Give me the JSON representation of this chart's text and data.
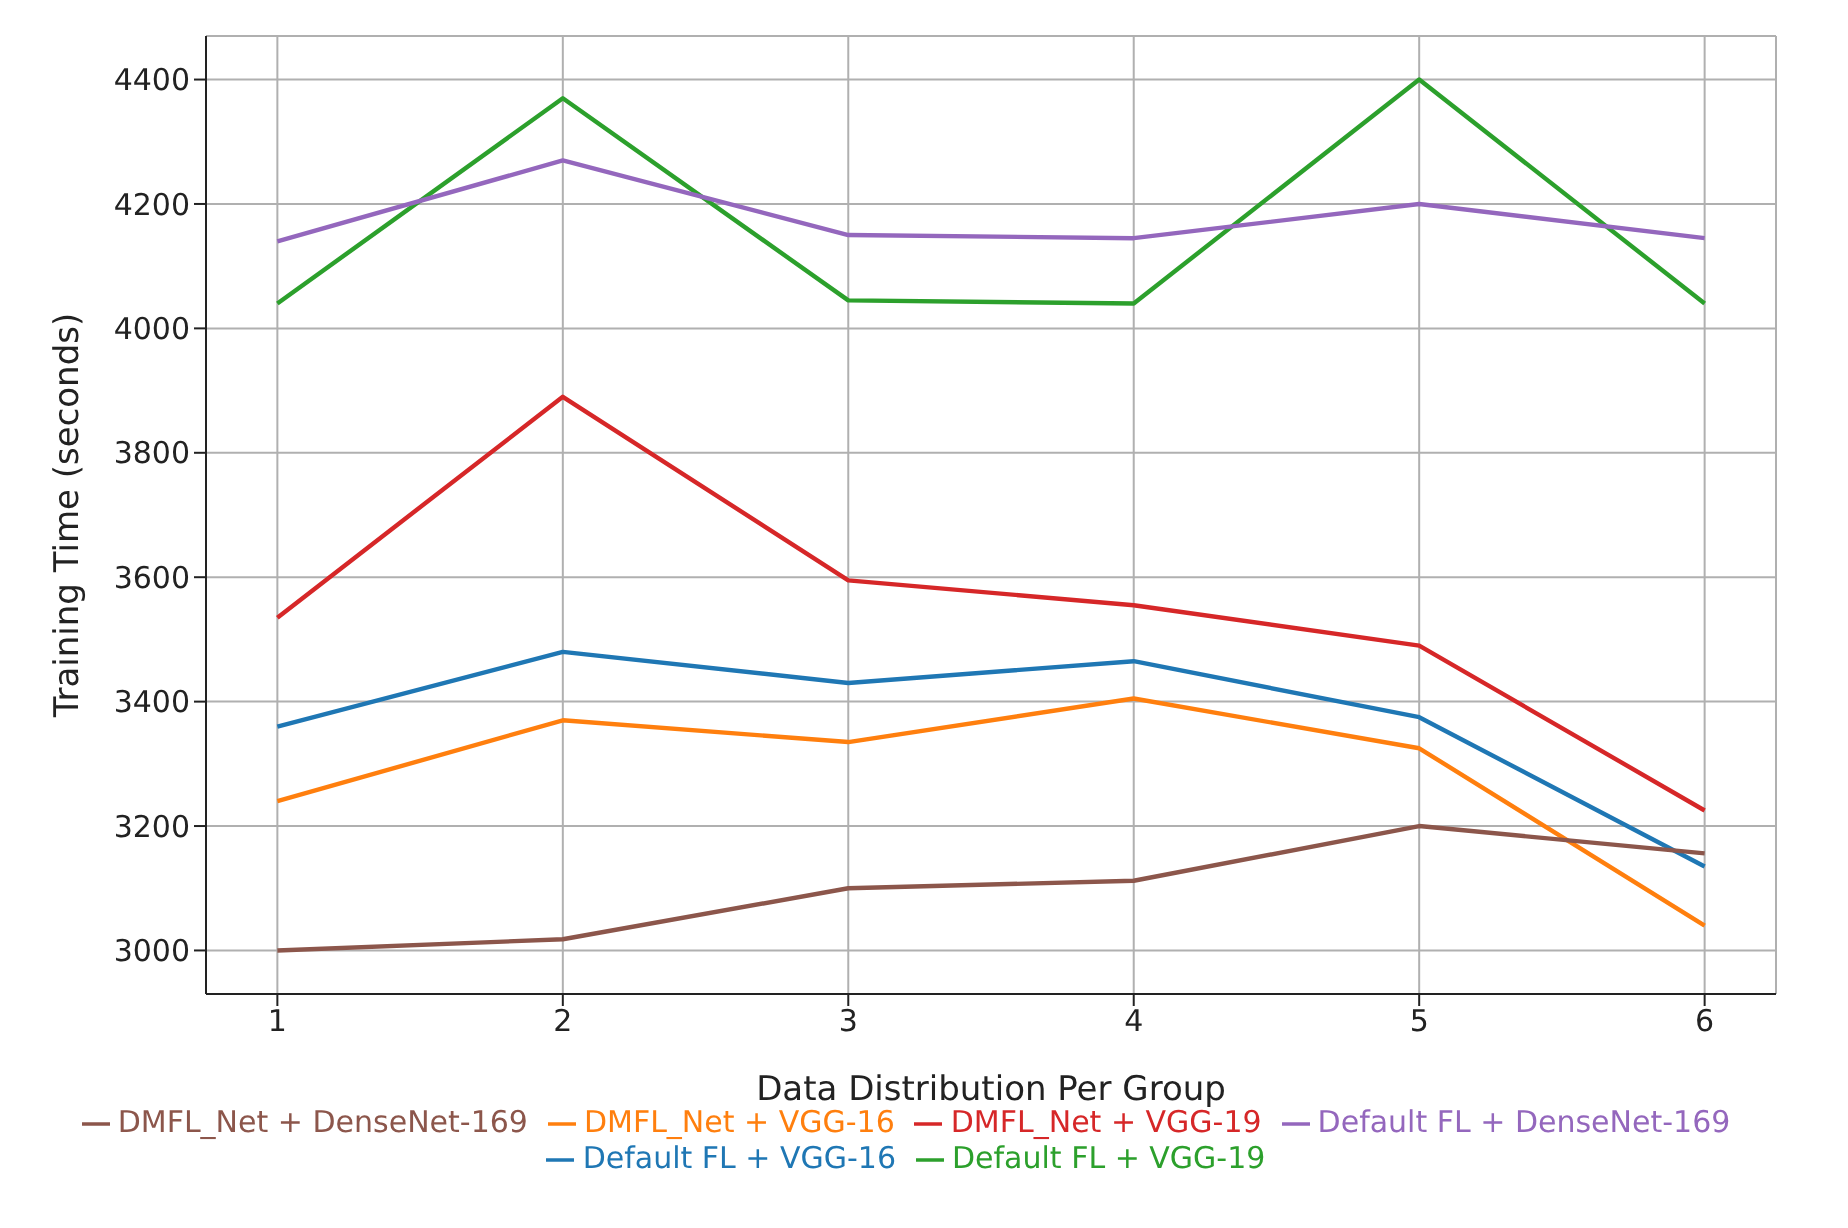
{
  "chart_data": {
    "type": "line",
    "xlabel": "Data Distribution Per Group",
    "ylabel": "Training Time (seconds)",
    "x": [
      1,
      2,
      3,
      4,
      5,
      6
    ],
    "series": [
      {
        "name": "Default FL + VGG-16",
        "color": "#1f77b4",
        "values": [
          3360,
          3480,
          3430,
          3465,
          3375,
          3135
        ]
      },
      {
        "name": "DMFL_Net + VGG-16",
        "color": "#ff7f0e",
        "values": [
          3240,
          3370,
          3335,
          3405,
          3325,
          3040
        ]
      },
      {
        "name": "Default FL + VGG-19",
        "color": "#2ca02c",
        "values": [
          4040,
          4370,
          4045,
          4040,
          4400,
          4040
        ]
      },
      {
        "name": "DMFL_Net + VGG-19",
        "color": "#d62728",
        "values": [
          3535,
          3890,
          3595,
          3555,
          3490,
          3225
        ]
      },
      {
        "name": "Default FL + DenseNet-169",
        "color": "#9467bd",
        "values": [
          4140,
          4270,
          4150,
          4145,
          4200,
          4145
        ]
      },
      {
        "name": "DMFL_Net + DenseNet-169",
        "color": "#8c564b",
        "values": [
          3000,
          3018,
          3100,
          3112,
          3200,
          3156
        ]
      }
    ],
    "xlim": [
      0.75,
      6.25
    ],
    "xticks": [
      1,
      2,
      3,
      4,
      5,
      6
    ],
    "ylim": [
      2930,
      4470
    ],
    "yticks": [
      3000,
      3200,
      3400,
      3600,
      3800,
      4000,
      4200,
      4400
    ],
    "grid": true,
    "legend": "bottom",
    "marker": "none",
    "line_style": "solid"
  }
}
